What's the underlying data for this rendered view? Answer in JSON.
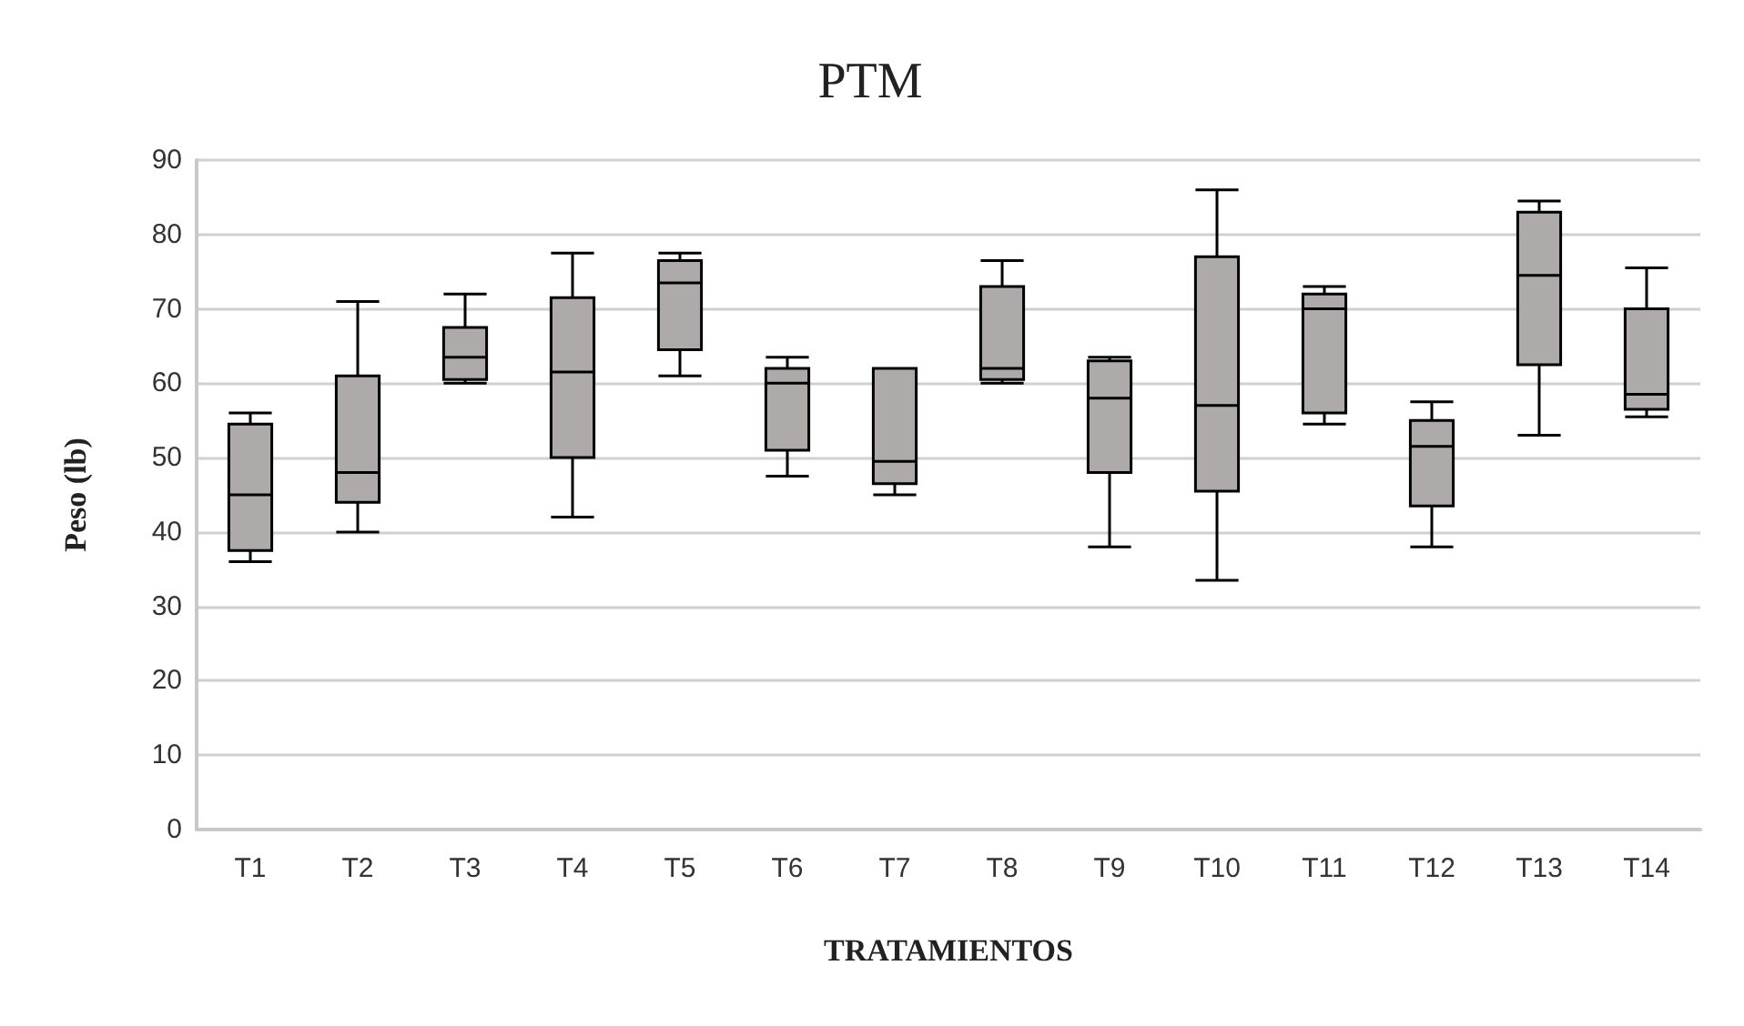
{
  "chart_data": {
    "type": "box",
    "title": "PTM",
    "xlabel": "TRATAMIENTOS",
    "ylabel": "Peso (lb)",
    "categories": [
      "T1",
      "T2",
      "T3",
      "T4",
      "T5",
      "T6",
      "T7",
      "T8",
      "T9",
      "T10",
      "T11",
      "T12",
      "T13",
      "T14"
    ],
    "ylim": [
      0,
      90
    ],
    "yticks": [
      0,
      10,
      20,
      30,
      40,
      50,
      60,
      70,
      80,
      90
    ],
    "grid": "y",
    "series": [
      {
        "color": "#aeaaaa",
        "boxes": [
          {
            "low": 36,
            "q1": 37.5,
            "median": 45,
            "q3": 54.5,
            "high": 56
          },
          {
            "low": 40,
            "q1": 44,
            "median": 48,
            "q3": 61,
            "high": 71
          },
          {
            "low": 60,
            "q1": 60.5,
            "median": 63.5,
            "q3": 67.5,
            "high": 72
          },
          {
            "low": 42,
            "q1": 50,
            "median": 61.5,
            "q3": 71.5,
            "high": 77.5
          },
          {
            "low": 61,
            "q1": 64.5,
            "median": 73.5,
            "q3": 76.5,
            "high": 77.5
          },
          {
            "low": 47.5,
            "q1": 51,
            "median": 60,
            "q3": 62,
            "high": 63.5
          },
          {
            "low": 45,
            "q1": 46.5,
            "median": 49.5,
            "q3": 62,
            "high": 62
          },
          {
            "low": 60,
            "q1": 60.5,
            "median": 62,
            "q3": 73,
            "high": 76.5
          },
          {
            "low": 38,
            "q1": 48,
            "median": 58,
            "q3": 63,
            "high": 63.5
          },
          {
            "low": 33.5,
            "q1": 45.5,
            "median": 57,
            "q3": 77,
            "high": 86
          },
          {
            "low": 54.5,
            "q1": 56,
            "median": 70,
            "q3": 72,
            "high": 73
          },
          {
            "low": 38,
            "q1": 43.5,
            "median": 51.5,
            "q3": 55,
            "high": 57.5
          },
          {
            "low": 53,
            "q1": 62.5,
            "median": 74.5,
            "q3": 83,
            "high": 84.5
          },
          {
            "low": 55.5,
            "q1": 56.5,
            "median": 58.5,
            "q3": 70,
            "high": 75.5
          }
        ]
      }
    ]
  }
}
